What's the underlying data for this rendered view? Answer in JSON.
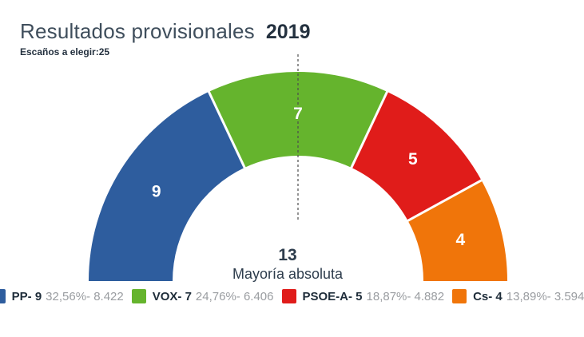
{
  "header": {
    "title": "Resultados provisionales",
    "year": "2019",
    "subtitle_label": "Escaños a elegir:",
    "subtitle_value": "25"
  },
  "majority": {
    "value": "13",
    "label": "Mayoría absoluta"
  },
  "chart_data": {
    "type": "pie",
    "layout": "semicircle-donut",
    "title": "Resultados provisionales 2019",
    "total_seats": 25,
    "majority_seats": 13,
    "majority_label": "Mayoría absoluta",
    "axis_line": "vertical-dashed-center",
    "series": [
      {
        "name": "PP",
        "seats": 9,
        "percent": "32,56%",
        "votes": "8.422",
        "color": "#2e5d9e"
      },
      {
        "name": "VOX",
        "seats": 7,
        "percent": "24,76%",
        "votes": "6.406",
        "color": "#65b42d"
      },
      {
        "name": "PSOE-A",
        "seats": 5,
        "percent": "18,87%",
        "votes": "4.882",
        "color": "#e01c1a"
      },
      {
        "name": "Cs",
        "seats": 4,
        "percent": "13,89%",
        "votes": "3.594",
        "color": "#f0750a"
      }
    ]
  },
  "legend": {
    "items": [
      {
        "label": "PP- 9",
        "value": "32,56%- 8.422",
        "color": "#2e5d9e"
      },
      {
        "label": "VOX- 7",
        "value": "24,76%- 6.406",
        "color": "#65b42d"
      },
      {
        "label": "PSOE-A- 5",
        "value": "18,87%- 4.882",
        "color": "#e01c1a"
      },
      {
        "label": "Cs- 4",
        "value": "13,89%- 3.594",
        "color": "#f0750a"
      }
    ]
  },
  "colors": {
    "title": "#3f4e5c",
    "dark_text": "#24313f",
    "legend_muted": "#9a9da1",
    "separator": "#ffffff",
    "dashed_axis": "#4d4d4d",
    "background": "#ffffff"
  }
}
